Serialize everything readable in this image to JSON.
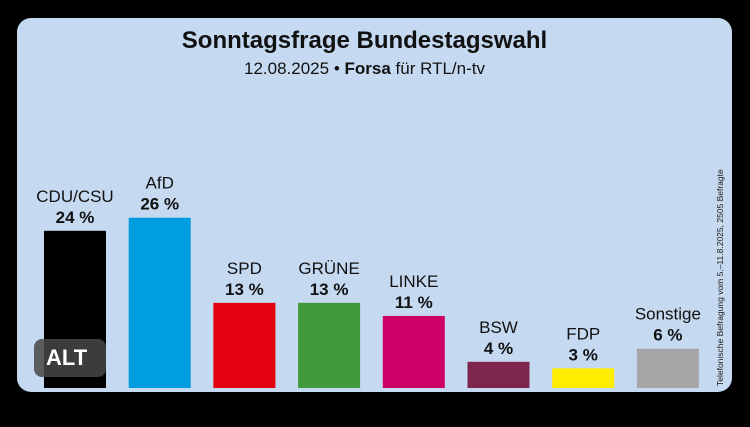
{
  "header": {
    "title": "Sonntagsfrage Bundestagswahl",
    "date": "12.08.2025",
    "pollster": "Forsa",
    "client": "für RTL/n-tv"
  },
  "note": "Telefonische Befragung vom 5.–11.8.2025, 2505 Befragte",
  "badge": {
    "label": "ALT"
  },
  "colors": {
    "background": "#c5d9f0",
    "CDU/CSU": "#000000",
    "AfD": "#009ee0",
    "SPD": "#e3000f",
    "GRÜNE": "#409a3c",
    "LINKE": "#cc0066",
    "BSW": "#7d254f",
    "FDP": "#ffed00",
    "Sonstige": "#a6a6a6"
  },
  "chart_data": {
    "type": "bar",
    "title": "Sonntagsfrage Bundestagswahl",
    "subtitle": "12.08.2025 • Forsa für RTL/n-tv",
    "categories": [
      "CDU/CSU",
      "AfD",
      "SPD",
      "GRÜNE",
      "LINKE",
      "BSW",
      "FDP",
      "Sonstige"
    ],
    "values": [
      24,
      26,
      13,
      13,
      11,
      4,
      3,
      6
    ],
    "value_labels": [
      "24 %",
      "26 %",
      "13 %",
      "13 %",
      "11 %",
      "4 %",
      "3 %",
      "6 %"
    ],
    "unit": "%",
    "grid": false,
    "legend": "none"
  }
}
